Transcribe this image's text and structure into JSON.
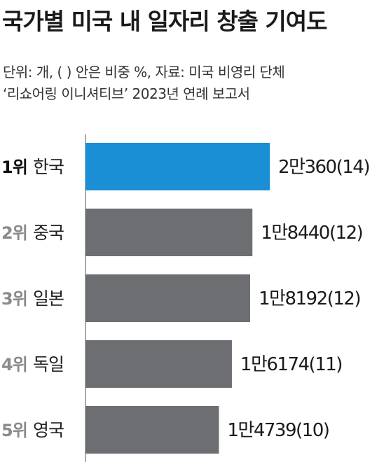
{
  "title": "국가별 미국 내 일자리 창출 기여도",
  "subtitle": {
    "line1": "단위: 개, ( ) 안은 비중 %, 자료: 미국 비영리 단체",
    "line2": "‘리쇼어링 이니셔티브’ 2023년 연례 보고서"
  },
  "colors": {
    "highlight": "#1a8fd6",
    "bar": "#6d6e71",
    "rank_highlight": "#111111",
    "rank": "#8a8b8d",
    "country": "#222222",
    "axis": "#555555"
  },
  "chart_data": {
    "type": "bar",
    "orientation": "horizontal",
    "title": "국가별 미국 내 일자리 창출 기여도",
    "unit": "개",
    "categories": [
      "한국",
      "중국",
      "일본",
      "독일",
      "영국"
    ],
    "ranks": [
      "1위",
      "2위",
      "3위",
      "4위",
      "5위"
    ],
    "values": [
      20360,
      18440,
      18192,
      16174,
      14739
    ],
    "shares": [
      14,
      12,
      12,
      11,
      10
    ],
    "value_labels": [
      "2만360(14)",
      "1만8440(12)",
      "1만8192(12)",
      "1만6174(11)",
      "1만4739(10)"
    ],
    "highlight_index": 0,
    "xlim": [
      0,
      20360
    ]
  }
}
